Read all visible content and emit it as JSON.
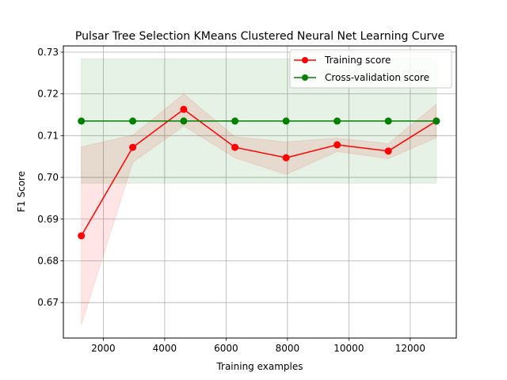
{
  "chart_data": {
    "type": "line",
    "title": "Pulsar Tree Selection KMeans Clustered Neural Net Learning Curve",
    "xlabel": "Training examples",
    "ylabel": "F1 Score",
    "xlim": [
      700,
      13500
    ],
    "ylim": [
      0.6615,
      0.7315
    ],
    "xticks": [
      2000,
      4000,
      6000,
      8000,
      10000,
      12000
    ],
    "xtick_labels": [
      "2000",
      "4000",
      "6000",
      "8000",
      "10000",
      "12000"
    ],
    "yticks": [
      0.67,
      0.68,
      0.69,
      0.7,
      0.71,
      0.72,
      0.73
    ],
    "ytick_labels": [
      "0.67",
      "0.68",
      "0.69",
      "0.70",
      "0.71",
      "0.72",
      "0.73"
    ],
    "grid": true,
    "legend_position": "top-right",
    "x": [
      1285,
      2960,
      4620,
      6290,
      7955,
      9620,
      11285,
      12850
    ],
    "series": [
      {
        "name": "Training score",
        "color": "#ff0000",
        "values": [
          0.686,
          0.7072,
          0.7163,
          0.7072,
          0.7047,
          0.7078,
          0.7063,
          0.7135
        ],
        "band_upper": [
          0.7073,
          0.7101,
          0.72,
          0.7097,
          0.7085,
          0.7094,
          0.7081,
          0.7175
        ],
        "band_lower": [
          0.6647,
          0.7036,
          0.7123,
          0.7047,
          0.7007,
          0.7062,
          0.7045,
          0.7095
        ]
      },
      {
        "name": "Cross-validation score",
        "color": "#008000",
        "values": [
          0.7135,
          0.7135,
          0.7135,
          0.7135,
          0.7135,
          0.7135,
          0.7135,
          0.7135
        ],
        "band_upper": [
          0.7284,
          0.7284,
          0.7284,
          0.7284,
          0.7284,
          0.7284,
          0.7284,
          0.7284
        ],
        "band_lower": [
          0.6986,
          0.6986,
          0.6986,
          0.6986,
          0.6986,
          0.6986,
          0.6986,
          0.6986
        ]
      }
    ]
  }
}
